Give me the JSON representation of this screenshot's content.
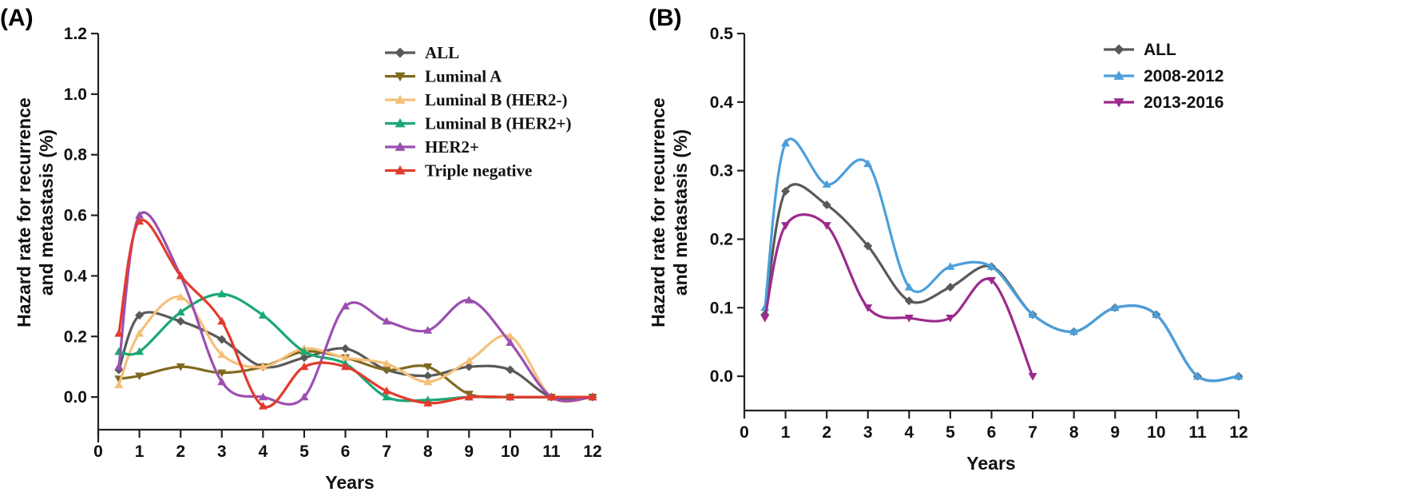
{
  "chart_data": [
    {
      "type": "line",
      "panel_label": "(A)",
      "xlabel": "Years",
      "ylabel_line1": "Hazard rate for recurrence",
      "ylabel_line2": "and metastasis (%)",
      "xlim": [
        0,
        12
      ],
      "ylim": [
        -0.15,
        1.2
      ],
      "xticks": [
        "0",
        "1",
        "2",
        "3",
        "4",
        "5",
        "6",
        "7",
        "8",
        "9",
        "10",
        "11",
        "12"
      ],
      "yticks": [
        "0.0",
        "0.2",
        "0.4",
        "0.6",
        "0.8",
        "1.0",
        "1.2"
      ],
      "legend_font": "serif",
      "legend_position": "top-right",
      "x": [
        0.5,
        1,
        2,
        3,
        4,
        5,
        6,
        7,
        8,
        9,
        10,
        11,
        12
      ],
      "series": [
        {
          "name": "ALL",
          "marker": "diamond",
          "color": "#595959",
          "values": [
            0.09,
            0.27,
            0.25,
            0.19,
            0.1,
            0.13,
            0.16,
            0.09,
            0.07,
            0.1,
            0.09,
            0.0,
            0.0
          ]
        },
        {
          "name": "Luminal A",
          "marker": "triangle-down",
          "color": "#7f6a1f",
          "values": [
            0.06,
            0.07,
            0.1,
            0.08,
            0.1,
            0.15,
            0.13,
            0.09,
            0.1,
            0.01,
            0.0,
            0.0,
            0.0
          ]
        },
        {
          "name": "Luminal B (HER2-)",
          "marker": "triangle-up",
          "color": "#f4c07a",
          "values": [
            0.04,
            0.21,
            0.33,
            0.14,
            0.1,
            0.16,
            0.13,
            0.11,
            0.05,
            0.12,
            0.2,
            0.0,
            0.0
          ]
        },
        {
          "name": "Luminal B (HER2+)",
          "marker": "triangle-up",
          "color": "#1aa876",
          "values": [
            0.15,
            0.15,
            0.28,
            0.34,
            0.27,
            0.15,
            0.11,
            0.0,
            -0.01,
            0.0,
            0.0,
            0.0,
            0.0
          ]
        },
        {
          "name": "HER2+",
          "marker": "triangle-up",
          "color": "#9b4fb0",
          "values": [
            0.1,
            0.6,
            0.4,
            0.05,
            0.0,
            0.0,
            0.3,
            0.25,
            0.22,
            0.32,
            0.18,
            0.0,
            0.0
          ]
        },
        {
          "name": "Triple negative",
          "marker": "triangle-up",
          "color": "#e23b2e",
          "values": [
            0.21,
            0.58,
            0.4,
            0.25,
            -0.03,
            0.1,
            0.1,
            0.02,
            -0.02,
            0.0,
            0.0,
            0.0,
            0.0
          ]
        }
      ]
    },
    {
      "type": "line",
      "panel_label": "(B)",
      "xlabel": "Years",
      "ylabel_line1": "Hazard rate for recurrence",
      "ylabel_line2": "and metastasis (%)",
      "xlim": [
        0,
        12
      ],
      "ylim": [
        -0.05,
        0.5
      ],
      "xticks": [
        "0",
        "1",
        "2",
        "3",
        "4",
        "5",
        "6",
        "7",
        "8",
        "9",
        "10",
        "11",
        "12"
      ],
      "yticks": [
        "0.0",
        "0.1",
        "0.2",
        "0.3",
        "0.4",
        "0.5"
      ],
      "legend_font": "sans",
      "legend_position": "top-right",
      "series": [
        {
          "name": "ALL",
          "marker": "diamond",
          "color": "#595959",
          "x": [
            0.5,
            1,
            2,
            3,
            4,
            5,
            6,
            7,
            8,
            9,
            10,
            11,
            12
          ],
          "values": [
            0.09,
            0.27,
            0.25,
            0.19,
            0.11,
            0.13,
            0.16,
            0.09,
            0.065,
            0.1,
            0.09,
            0.0,
            0.0
          ]
        },
        {
          "name": "2008-2012",
          "marker": "triangle-up",
          "color": "#4b9fdb",
          "x": [
            0.5,
            1,
            2,
            3,
            4,
            5,
            6,
            7,
            8,
            9,
            10,
            11,
            12
          ],
          "values": [
            0.1,
            0.34,
            0.28,
            0.31,
            0.13,
            0.16,
            0.16,
            0.09,
            0.065,
            0.1,
            0.09,
            0.0,
            0.0
          ]
        },
        {
          "name": "2013-2016",
          "marker": "triangle-down",
          "color": "#9c2a8c",
          "x": [
            0.5,
            1,
            2,
            3,
            4,
            5,
            6,
            7
          ],
          "values": [
            0.085,
            0.22,
            0.22,
            0.1,
            0.085,
            0.085,
            0.14,
            0.0
          ]
        }
      ]
    }
  ]
}
